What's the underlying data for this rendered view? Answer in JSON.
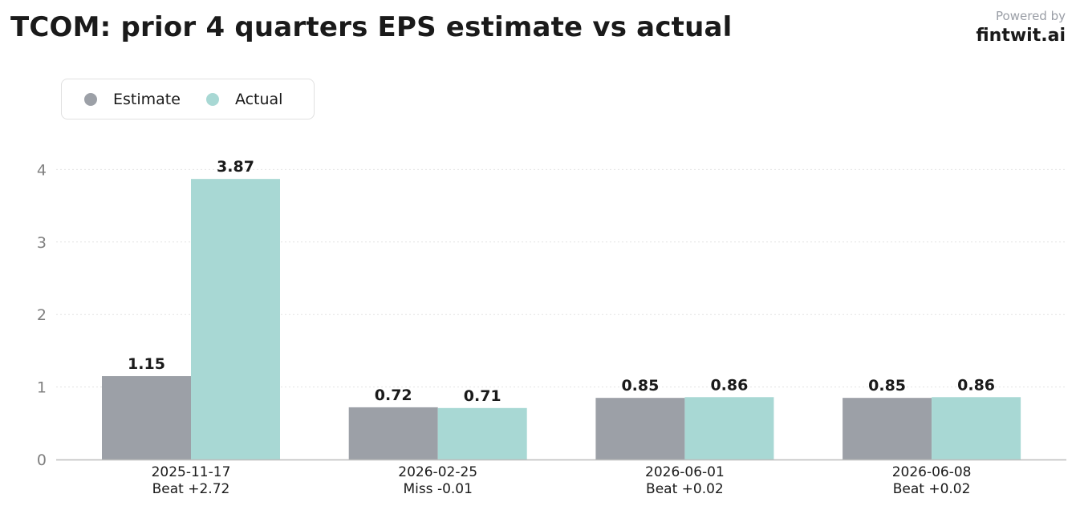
{
  "header": {
    "title": "TCOM: prior 4 quarters EPS estimate vs actual",
    "powered_by": "Powered by",
    "brand": "fintwit.ai"
  },
  "legend": {
    "items": [
      {
        "label": "Estimate",
        "color": "#9ca0a7"
      },
      {
        "label": "Actual",
        "color": "#a8d8d4"
      }
    ]
  },
  "chart_data": {
    "type": "bar",
    "title": "TCOM: prior 4 quarters EPS estimate vs actual",
    "categories": [
      "2025-11-17",
      "2026-02-25",
      "2026-06-01",
      "2026-06-08"
    ],
    "category_sublabels": [
      "Beat +2.72",
      "Miss -0.01",
      "Beat +0.02",
      "Beat +0.02"
    ],
    "series": [
      {
        "name": "Estimate",
        "values": [
          1.15,
          0.72,
          0.85,
          0.85
        ],
        "color": "#9ca0a7"
      },
      {
        "name": "Actual",
        "values": [
          3.87,
          0.71,
          0.86,
          0.86
        ],
        "color": "#a8d8d4"
      }
    ],
    "value_labels": {
      "Estimate": [
        "1.15",
        "0.72",
        "0.85",
        "0.85"
      ],
      "Actual": [
        "3.87",
        "0.71",
        "0.86",
        "0.86"
      ]
    },
    "yticks": [
      0,
      1,
      2,
      3,
      4
    ],
    "ylim": [
      0,
      4.4
    ],
    "grid": true,
    "legend_position": "top-left"
  }
}
